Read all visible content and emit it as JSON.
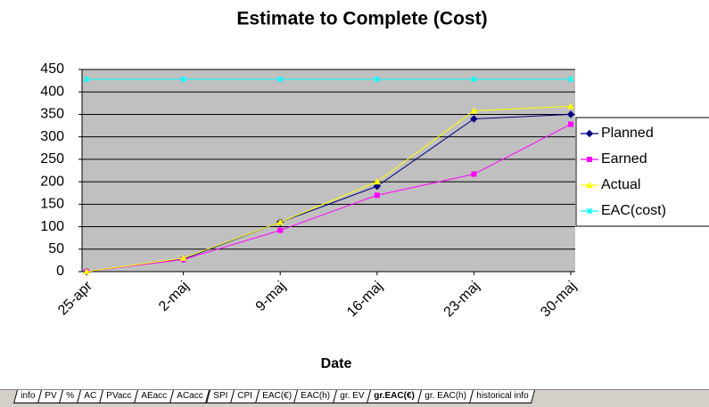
{
  "chart_data": {
    "type": "line",
    "title": "Estimate to Complete (Cost)",
    "xlabel": "Date",
    "categories": [
      "25-apr",
      "2-maj",
      "9-maj",
      "16-maj",
      "23-maj",
      "30-maj"
    ],
    "series": [
      {
        "name": "Planned",
        "color": "#000080",
        "marker": "diamond",
        "values": [
          0,
          28,
          110,
          190,
          340,
          350
        ]
      },
      {
        "name": "Earned",
        "color": "#ff00ff",
        "marker": "square",
        "values": [
          0,
          27,
          92,
          170,
          217,
          328
        ]
      },
      {
        "name": "Actual",
        "color": "#ffff00",
        "marker": "triangle",
        "values": [
          0,
          30,
          110,
          200,
          358,
          368
        ]
      },
      {
        "name": "EAC(cost)",
        "color": "#00ffff",
        "marker": "star",
        "values": [
          428,
          428,
          428,
          428,
          428,
          428
        ]
      }
    ],
    "ylim": [
      0,
      450
    ],
    "yticks": [
      0,
      50,
      100,
      150,
      200,
      250,
      300,
      350,
      400,
      450
    ],
    "grid": true,
    "legend": "right"
  },
  "sheet_tabs": [
    "info",
    "PV",
    "%",
    "AC",
    "PVacc",
    "AEacc",
    "ACacc",
    "SPI",
    "CPI",
    "EAC(€)",
    "EAC(h)",
    "gr. EV",
    "gr.EAC(€)",
    "gr. EAC(h)",
    "historical info"
  ],
  "active_sheet": "gr.EAC(€)"
}
